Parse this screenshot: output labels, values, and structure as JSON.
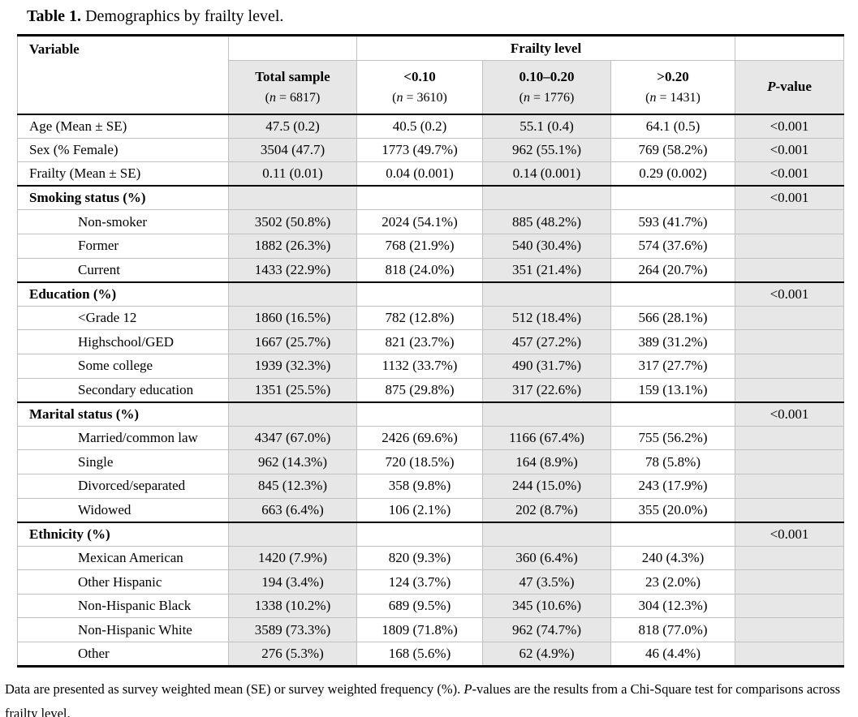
{
  "title": {
    "prefix": "Table 1.",
    "text": " Demographics by frailty level."
  },
  "table": {
    "header": {
      "variable_label": "Variable",
      "frailty_group_label": "Frailty level",
      "columns": [
        {
          "label": "Total sample",
          "n_pre": "(",
          "n_italic": "n",
          "n_post": " = 6817)"
        },
        {
          "label": "<0.10",
          "n_pre": "(",
          "n_italic": "n",
          "n_post": " = 3610)"
        },
        {
          "label": "0.10–0.20",
          "n_pre": "(",
          "n_italic": "n",
          "n_post": " = 1776)"
        },
        {
          "label": ">0.20",
          "n_pre": "(",
          "n_italic": "n",
          "n_post": " = 1431)"
        }
      ],
      "pvalue": {
        "italic": "P",
        "rest": "-value"
      }
    },
    "rows": [
      {
        "type": "data",
        "label": "Age (Mean ± SE)",
        "values": [
          "47.5 (0.2)",
          "40.5 (0.2)",
          "55.1 (0.4)",
          "64.1 (0.5)"
        ],
        "p": "<0.001"
      },
      {
        "type": "data",
        "label": "Sex (% Female)",
        "values": [
          "3504 (47.7)",
          "1773 (49.7%)",
          "962 (55.1%)",
          "769 (58.2%)"
        ],
        "p": "<0.001"
      },
      {
        "type": "data",
        "label": "Frailty (Mean ± SE)",
        "values": [
          "0.11 (0.01)",
          "0.04 (0.001)",
          "0.14 (0.001)",
          "0.29 (0.002)"
        ],
        "p": "<0.001"
      },
      {
        "type": "section",
        "label": "Smoking status (%)",
        "values": [
          "",
          "",
          "",
          ""
        ],
        "p": "<0.001"
      },
      {
        "type": "indent",
        "label": "Non-smoker",
        "values": [
          "3502 (50.8%)",
          "2024 (54.1%)",
          "885 (48.2%)",
          "593 (41.7%)"
        ],
        "p": ""
      },
      {
        "type": "indent",
        "label": "Former",
        "values": [
          "1882 (26.3%)",
          "768 (21.9%)",
          "540 (30.4%)",
          "574 (37.6%)"
        ],
        "p": ""
      },
      {
        "type": "indent",
        "label": "Current",
        "values": [
          "1433 (22.9%)",
          "818 (24.0%)",
          "351 (21.4%)",
          "264 (20.7%)"
        ],
        "p": ""
      },
      {
        "type": "section",
        "label": "Education (%)",
        "values": [
          "",
          "",
          "",
          ""
        ],
        "p": "<0.001"
      },
      {
        "type": "indent",
        "label": "<Grade 12",
        "values": [
          "1860 (16.5%)",
          "782 (12.8%)",
          "512 (18.4%)",
          "566 (28.1%)"
        ],
        "p": ""
      },
      {
        "type": "indent",
        "label": "Highschool/GED",
        "values": [
          "1667 (25.7%)",
          "821 (23.7%)",
          "457 (27.2%)",
          "389 (31.2%)"
        ],
        "p": ""
      },
      {
        "type": "indent",
        "label": "Some college",
        "values": [
          "1939 (32.3%)",
          "1132 (33.7%)",
          "490 (31.7%)",
          "317 (27.7%)"
        ],
        "p": ""
      },
      {
        "type": "indent",
        "label": "Secondary education",
        "values": [
          "1351 (25.5%)",
          "875 (29.8%)",
          "317 (22.6%)",
          "159 (13.1%)"
        ],
        "p": ""
      },
      {
        "type": "section",
        "label": "Marital status (%)",
        "values": [
          "",
          "",
          "",
          ""
        ],
        "p": "<0.001"
      },
      {
        "type": "indent",
        "label": "Married/common law",
        "values": [
          "4347 (67.0%)",
          "2426 (69.6%)",
          "1166 (67.4%)",
          "755 (56.2%)"
        ],
        "p": ""
      },
      {
        "type": "indent",
        "label": "Single",
        "values": [
          "962 (14.3%)",
          "720 (18.5%)",
          "164 (8.9%)",
          "78 (5.8%)"
        ],
        "p": ""
      },
      {
        "type": "indent",
        "label": "Divorced/separated",
        "values": [
          "845 (12.3%)",
          "358 (9.8%)",
          "244 (15.0%)",
          "243 (17.9%)"
        ],
        "p": ""
      },
      {
        "type": "indent",
        "label": "Widowed",
        "values": [
          "663 (6.4%)",
          "106 (2.1%)",
          "202 (8.7%)",
          "355 (20.0%)"
        ],
        "p": ""
      },
      {
        "type": "section",
        "label": "Ethnicity (%)",
        "values": [
          "",
          "",
          "",
          ""
        ],
        "p": "<0.001"
      },
      {
        "type": "indent",
        "label": "Mexican American",
        "values": [
          "1420 (7.9%)",
          "820 (9.3%)",
          "360 (6.4%)",
          "240 (4.3%)"
        ],
        "p": ""
      },
      {
        "type": "indent",
        "label": "Other Hispanic",
        "values": [
          "194 (3.4%)",
          "124 (3.7%)",
          "47 (3.5%)",
          "23 (2.0%)"
        ],
        "p": ""
      },
      {
        "type": "indent",
        "label": "Non-Hispanic Black",
        "values": [
          "1338 (10.2%)",
          "689 (9.5%)",
          "345 (10.6%)",
          "304 (12.3%)"
        ],
        "p": ""
      },
      {
        "type": "indent",
        "label": "Non-Hispanic White",
        "values": [
          "3589 (73.3%)",
          "1809 (71.8%)",
          "962 (74.7%)",
          "818 (77.0%)"
        ],
        "p": ""
      },
      {
        "type": "indent",
        "label": "Other",
        "values": [
          "276 (5.3%)",
          "168 (5.6%)",
          "62 (4.9%)",
          "46 (4.4%)"
        ],
        "p": ""
      }
    ]
  },
  "footnote": {
    "part1": "Data are presented as survey weighted mean (SE) or survey weighted frequency (%). ",
    "italic": "P",
    "part2": "-values are the results from a Chi-Square test for comparisons across frailty level."
  },
  "colors": {
    "shaded_column": "#e7e7e7",
    "grid_line": "#c0c0c0",
    "section_line": "#000000"
  }
}
